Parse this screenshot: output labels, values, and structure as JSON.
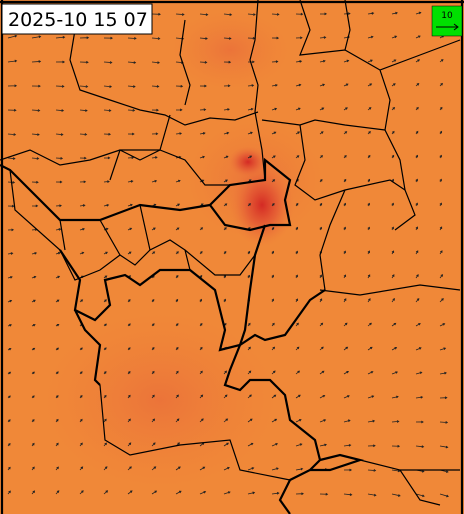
{
  "header": {
    "timestamp": "2025-10 15 07"
  },
  "legend": {
    "label": "10"
  }
}
